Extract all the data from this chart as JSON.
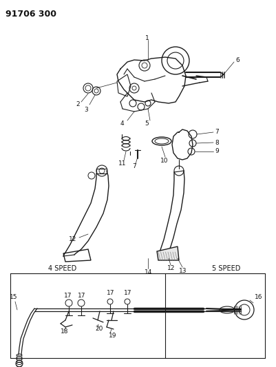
{
  "title": "91706 300",
  "bg_color": "#ffffff",
  "line_color": "#1a1a1a",
  "text_color": "#111111",
  "title_fontsize": 9,
  "label_fontsize": 6.5,
  "figsize": [
    4.01,
    5.33
  ],
  "dpi": 100
}
